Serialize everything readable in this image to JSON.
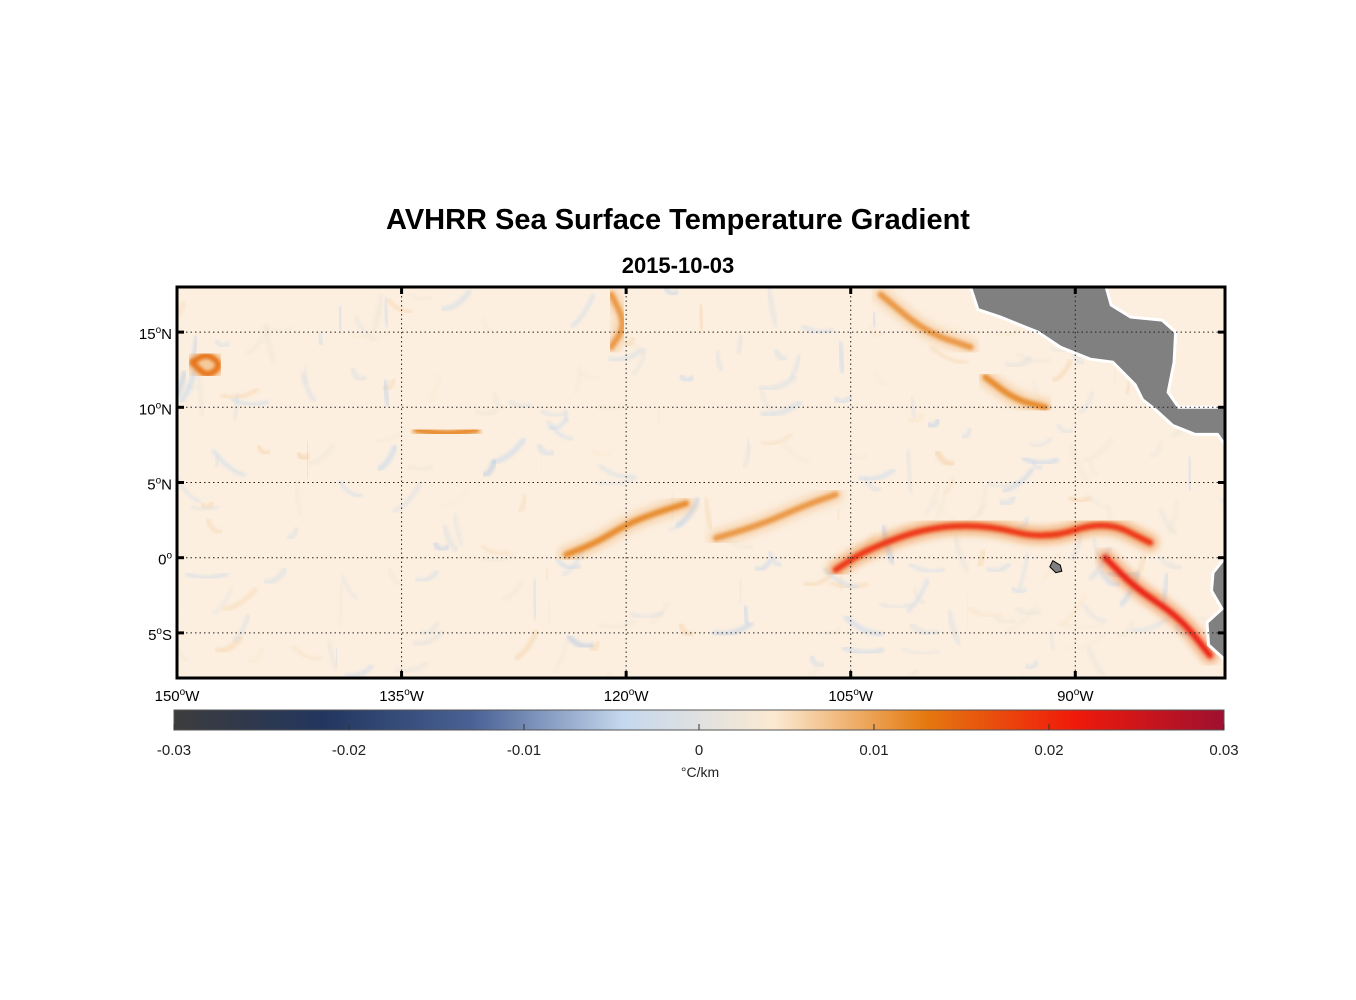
{
  "title": "AVHRR Sea Surface Temperature Gradient",
  "subtitle": "2015-10-03",
  "map": {
    "extent": {
      "lon": [
        -150,
        -80
      ],
      "lat": [
        -8,
        18
      ]
    },
    "lat_ticks": [
      {
        "value": 15,
        "label": "15",
        "suffix": "N"
      },
      {
        "value": 10,
        "label": "10",
        "suffix": "N"
      },
      {
        "value": 5,
        "label": "5",
        "suffix": "N"
      },
      {
        "value": 0,
        "label": "0",
        "suffix": ""
      },
      {
        "value": -5,
        "label": "5",
        "suffix": "S"
      }
    ],
    "lon_ticks": [
      {
        "value": -150,
        "label": "150",
        "suffix": "W"
      },
      {
        "value": -135,
        "label": "135",
        "suffix": "W"
      },
      {
        "value": -120,
        "label": "120",
        "suffix": "W"
      },
      {
        "value": -105,
        "label": "105",
        "suffix": "W"
      },
      {
        "value": -90,
        "label": "90",
        "suffix": "W"
      }
    ],
    "grid": "dotted",
    "land_color": "#808080",
    "ocean_background": "#fcefe0"
  },
  "colorbar": {
    "range": [
      -0.03,
      0.03
    ],
    "tick_labels": [
      "-0.03",
      "-0.02",
      "-0.01",
      "0",
      "0.01",
      "0.02",
      "0.03"
    ],
    "tick_values": [
      -0.03,
      -0.02,
      -0.01,
      0,
      0.01,
      0.02,
      0.03
    ],
    "units": "°C/km",
    "colors": [
      "#3c3c3c",
      "#22365e",
      "#4a6296",
      "#c5d8ee",
      "#fbead2",
      "#e47a10",
      "#f01a0a",
      "#9e1030"
    ]
  },
  "gradient_features": [
    {
      "desc": "equatorial front west",
      "path": [
        [
          -124,
          0.2
        ],
        [
          -122,
          1
        ],
        [
          -120,
          2.2
        ],
        [
          -118,
          3
        ],
        [
          -116,
          3.6
        ]
      ],
      "value": 0.012
    },
    {
      "desc": "equatorial front center",
      "path": [
        [
          -114,
          1.3
        ],
        [
          -111,
          2.2
        ],
        [
          -108,
          3.5
        ],
        [
          -106,
          4.2
        ]
      ],
      "value": 0.011
    },
    {
      "desc": "equatorial front east",
      "path": [
        [
          -106,
          -0.8
        ],
        [
          -104,
          0.5
        ],
        [
          -100,
          2
        ],
        [
          -96,
          2.2
        ],
        [
          -92,
          1.2
        ],
        [
          -88,
          2.5
        ],
        [
          -85,
          1
        ]
      ],
      "value": 0.02
    },
    {
      "desc": "southeast coastal front",
      "path": [
        [
          -88,
          0
        ],
        [
          -86,
          -2
        ],
        [
          -83,
          -4
        ],
        [
          -81,
          -6.5
        ]
      ],
      "value": 0.022
    },
    {
      "desc": "northwest eddy",
      "path": [
        [
          -149,
          13
        ],
        [
          -148,
          13.6
        ],
        [
          -147,
          12.8
        ],
        [
          -148,
          12
        ],
        [
          -149,
          13
        ]
      ],
      "value": 0.014
    },
    {
      "desc": "north front 1",
      "path": [
        [
          -134,
          8.5
        ],
        [
          -132,
          8.2
        ],
        [
          -130,
          8.5
        ]
      ],
      "value": 0.012
    },
    {
      "desc": "north front 2",
      "path": [
        [
          -121,
          17.5
        ],
        [
          -120,
          15.5
        ],
        [
          -121,
          14
        ]
      ],
      "value": 0.011
    },
    {
      "desc": "north front 3",
      "path": [
        [
          -103,
          17.5
        ],
        [
          -100,
          15
        ],
        [
          -97,
          14
        ]
      ],
      "value": 0.011
    },
    {
      "desc": "north front 4",
      "path": [
        [
          -96,
          12
        ],
        [
          -94,
          10.5
        ],
        [
          -92,
          10
        ]
      ],
      "value": 0.012
    }
  ]
}
